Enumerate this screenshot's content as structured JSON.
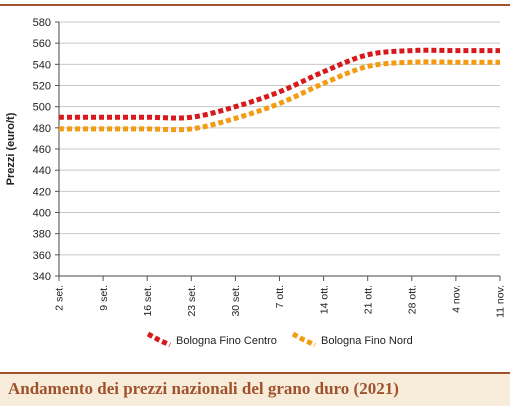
{
  "caption": "Andamento dei prezzi nazionali del grano duro (2021)",
  "chart_data": {
    "type": "line",
    "title": "",
    "xlabel": "",
    "ylabel": "Prezzi (euro/t)",
    "ylim": [
      340,
      580
    ],
    "yticks": [
      340,
      360,
      380,
      400,
      420,
      440,
      460,
      480,
      500,
      520,
      540,
      560,
      580
    ],
    "categories": [
      "2 set.",
      "9 set.",
      "16 set.",
      "23 set.",
      "30 set.",
      "7 ott.",
      "14 ott.",
      "21 ott.",
      "28 ott.",
      "4 nov.",
      "11 nov."
    ],
    "grid": "horizontal",
    "legend_position": "bottom",
    "series": [
      {
        "name": "Bologna Fino Centro",
        "color": "#d7191c",
        "values": [
          490,
          490,
          490,
          490,
          500,
          514,
          533,
          549,
          553,
          553,
          553
        ]
      },
      {
        "name": "Bologna Fino Nord",
        "color": "#f39c12",
        "values": [
          479,
          479,
          479,
          479,
          489,
          503,
          522,
          538,
          542,
          542,
          542
        ]
      }
    ]
  }
}
